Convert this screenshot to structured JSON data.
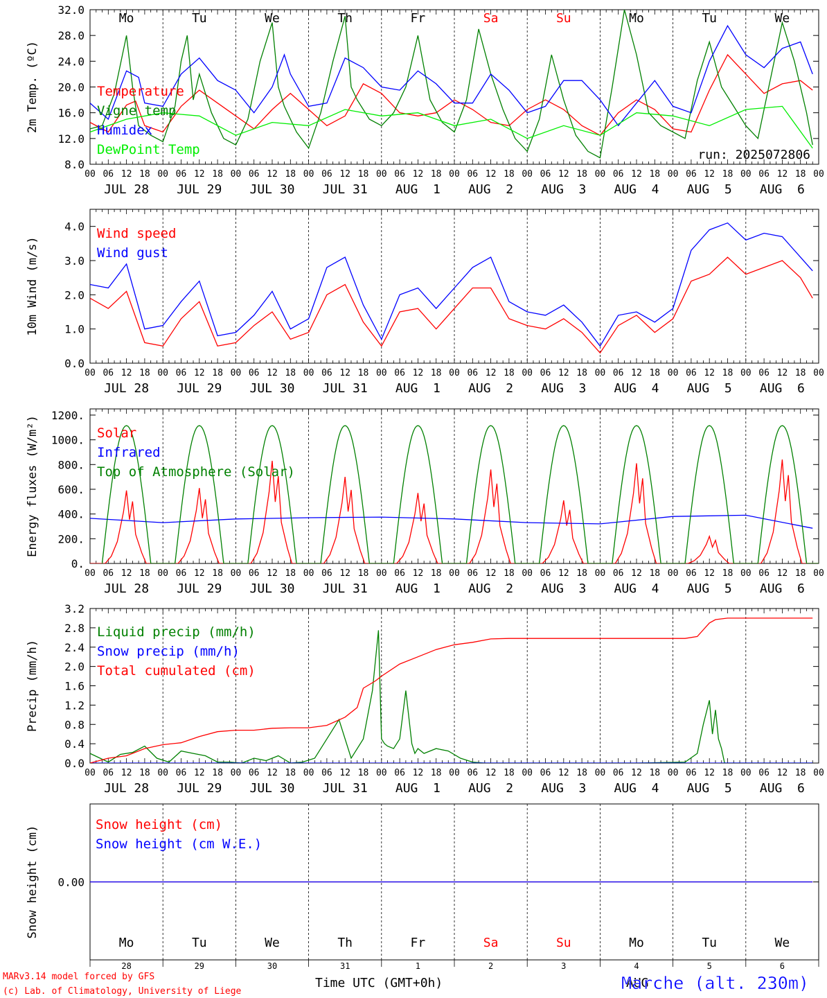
{
  "days": [
    "Mo",
    "Tu",
    "We",
    "Th",
    "Fr",
    "Sa",
    "Su",
    "Mo",
    "Tu",
    "We"
  ],
  "day_colors": [
    "#000000",
    "#000000",
    "#000000",
    "#000000",
    "#000000",
    "#ff0000",
    "#ff0000",
    "#000000",
    "#000000",
    "#000000"
  ],
  "dates": [
    "JUL 28",
    "JUL 29",
    "JUL 30",
    "JUL 31",
    "AUG  1",
    "AUG  2",
    "AUG  3",
    "AUG  4",
    "AUG  5",
    "AUG  6"
  ],
  "hour_labels": [
    "00",
    "06",
    "12",
    "18"
  ],
  "bottom_days": [
    "28",
    "29",
    "30",
    "31",
    "1",
    "2",
    "3",
    "4",
    "5",
    "6"
  ],
  "footer": {
    "model": "MARv3.14 model forced by GFS",
    "copyright": "(c) Lab. of Climatology, University of Liege",
    "axis_title": "Time UTC (GMT+0h)",
    "station": "Marche (alt. 230m)",
    "overlap_text": "AUG"
  },
  "chart_data": [
    {
      "type": "line",
      "ylabel": "2m Temp. (ºC)",
      "ylim": [
        8,
        32
      ],
      "yticks": [
        "8.0",
        "12.0",
        "16.0",
        "20.0",
        "24.0",
        "28.0",
        "32.0"
      ],
      "run": "run: 2025072806",
      "x_unit": "hours since JUL 28 00 UTC",
      "series": [
        {
          "name": "Temperature",
          "color": "#ff0000",
          "x": [
            0,
            6,
            12,
            15,
            18,
            24,
            30,
            36,
            42,
            48,
            54,
            60,
            66,
            72,
            78,
            84,
            90,
            96,
            102,
            108,
            114,
            120,
            126,
            132,
            138,
            144,
            150,
            156,
            162,
            168,
            174,
            180,
            186,
            192,
            198,
            204,
            210,
            216,
            222,
            228,
            234,
            238
          ],
          "values": [
            14.5,
            13,
            17.2,
            17.8,
            14,
            13,
            17,
            19.5,
            17.5,
            15.5,
            13.5,
            16.5,
            19,
            16.5,
            14,
            15.5,
            20.5,
            19,
            16,
            15.5,
            16,
            18,
            16.5,
            14.5,
            14,
            16.5,
            18,
            16.5,
            14,
            12.5,
            16,
            18,
            16.5,
            13.5,
            13,
            19.5,
            25,
            22,
            19,
            20.5,
            21,
            19.5
          ]
        },
        {
          "name": "Vigne temp",
          "color": "#008000",
          "x": [
            0,
            4,
            8,
            12,
            14,
            16,
            20,
            24,
            28,
            30,
            32,
            34,
            36,
            40,
            44,
            48,
            52,
            56,
            60,
            62,
            64,
            68,
            72,
            76,
            80,
            84,
            86,
            88,
            92,
            96,
            100,
            104,
            108,
            112,
            116,
            120,
            124,
            128,
            132,
            136,
            140,
            144,
            148,
            152,
            156,
            160,
            164,
            168,
            172,
            176,
            180,
            184,
            188,
            192,
            196,
            200,
            204,
            208,
            212,
            216,
            220,
            224,
            228,
            232,
            236,
            238
          ],
          "values": [
            13.5,
            14,
            19,
            28,
            20,
            14,
            12.5,
            11.5,
            17,
            24,
            28,
            18,
            22,
            16,
            12,
            11,
            15,
            24,
            30,
            20,
            17,
            13,
            10.5,
            16,
            24,
            31,
            20,
            18,
            15,
            14,
            16,
            20,
            28,
            18,
            14.5,
            13,
            18,
            29,
            22,
            16.5,
            12,
            10,
            15,
            25,
            18,
            12.5,
            10,
            9,
            20,
            32,
            25,
            16,
            14,
            13,
            12,
            21,
            27,
            20,
            17,
            14,
            12,
            21,
            30,
            24,
            16,
            11
          ]
        },
        {
          "name": "Humidex",
          "color": "#0000ff",
          "x": [
            0,
            6,
            12,
            16,
            18,
            24,
            30,
            36,
            42,
            48,
            54,
            60,
            64,
            66,
            72,
            78,
            84,
            90,
            96,
            102,
            108,
            114,
            120,
            126,
            132,
            138,
            144,
            150,
            156,
            162,
            168,
            174,
            180,
            186,
            192,
            198,
            204,
            210,
            216,
            222,
            228,
            234,
            238
          ],
          "values": [
            17.5,
            15,
            22.5,
            21.5,
            17.5,
            17,
            22,
            24.5,
            21,
            19.5,
            16,
            20,
            25,
            22,
            17,
            17.5,
            24.5,
            23,
            20,
            19.5,
            22.5,
            20.5,
            17.5,
            17.5,
            22,
            19.5,
            16,
            17,
            21,
            21,
            18,
            14,
            17.5,
            21,
            17,
            16,
            24,
            29.5,
            25,
            23,
            26,
            27,
            22
          ]
        },
        {
          "name": "DewPoint Temp",
          "color": "#00ee00",
          "x": [
            0,
            12,
            24,
            36,
            48,
            60,
            72,
            84,
            96,
            108,
            120,
            132,
            144,
            156,
            168,
            180,
            192,
            204,
            216,
            228,
            238
          ],
          "values": [
            13,
            15,
            16,
            15.5,
            12.5,
            14.5,
            14,
            16.5,
            15.5,
            16,
            14,
            15,
            12,
            14,
            12.5,
            16,
            15.5,
            14,
            16.5,
            17,
            10.5
          ]
        }
      ]
    },
    {
      "type": "line",
      "ylabel": "10m Wind (m/s)",
      "ylim": [
        0,
        4.5
      ],
      "yticks": [
        "0.0",
        "1.0",
        "2.0",
        "3.0",
        "4.0"
      ],
      "x_unit": "hours since JUL 28 00 UTC",
      "series": [
        {
          "name": "Wind speed",
          "color": "#ff0000",
          "x": [
            0,
            6,
            12,
            18,
            24,
            30,
            36,
            42,
            48,
            54,
            60,
            66,
            72,
            78,
            84,
            90,
            96,
            102,
            108,
            114,
            120,
            126,
            132,
            138,
            144,
            150,
            156,
            162,
            168,
            174,
            180,
            186,
            192,
            198,
            204,
            210,
            216,
            222,
            228,
            234,
            238
          ],
          "values": [
            1.9,
            1.6,
            2.1,
            0.6,
            0.5,
            1.3,
            1.8,
            0.5,
            0.6,
            1.1,
            1.5,
            0.7,
            0.9,
            2.0,
            2.3,
            1.2,
            0.5,
            1.5,
            1.6,
            1.0,
            1.6,
            2.2,
            2.2,
            1.3,
            1.1,
            1.0,
            1.3,
            0.9,
            0.3,
            1.1,
            1.4,
            0.9,
            1.3,
            2.4,
            2.6,
            3.1,
            2.6,
            2.8,
            3.0,
            2.5,
            1.9
          ]
        },
        {
          "name": "Wind gust",
          "color": "#0000ff",
          "x": [
            0,
            6,
            12,
            18,
            24,
            30,
            36,
            42,
            48,
            54,
            60,
            66,
            72,
            78,
            84,
            90,
            96,
            102,
            108,
            114,
            120,
            126,
            132,
            138,
            144,
            150,
            156,
            162,
            168,
            174,
            180,
            186,
            192,
            198,
            204,
            210,
            216,
            222,
            228,
            234,
            238
          ],
          "values": [
            2.3,
            2.2,
            2.9,
            1.0,
            1.1,
            1.8,
            2.4,
            0.8,
            0.9,
            1.4,
            2.1,
            1.0,
            1.3,
            2.8,
            3.1,
            1.7,
            0.7,
            2.0,
            2.2,
            1.6,
            2.2,
            2.8,
            3.1,
            1.8,
            1.5,
            1.4,
            1.7,
            1.2,
            0.5,
            1.4,
            1.5,
            1.2,
            1.6,
            3.3,
            3.9,
            4.1,
            3.6,
            3.8,
            3.7,
            3.1,
            2.7
          ]
        }
      ]
    },
    {
      "type": "line",
      "ylabel": "Energy fluxes (W/m²)",
      "ylim": [
        0,
        1250
      ],
      "yticks": [
        "0.",
        "200.",
        "400.",
        "600.",
        "800.",
        "1000.",
        "1200."
      ],
      "x_unit": "hours since JUL 28 00 UTC",
      "series": [
        {
          "name": "Solar",
          "color": "#ff0000",
          "peaks": [
            590,
            610,
            830,
            700,
            570,
            760,
            510,
            810,
            220,
            840
          ]
        },
        {
          "name": "Infrared",
          "color": "#0000ff",
          "x": [
            0,
            24,
            48,
            72,
            96,
            120,
            144,
            168,
            192,
            216,
            238
          ],
          "values": [
            365,
            330,
            360,
            370,
            375,
            360,
            330,
            320,
            380,
            390,
            285
          ]
        },
        {
          "name": "Top of Atmosphere (Solar)",
          "color": "#008000",
          "peak": 1115,
          "sunrise_h": 4,
          "sunset_h": 20
        }
      ]
    },
    {
      "type": "line",
      "ylabel": "Precip (mm/h)",
      "ylim": [
        0,
        3.2
      ],
      "yticks": [
        "0.0",
        "0.4",
        "0.8",
        "1.2",
        "1.6",
        "2.0",
        "2.4",
        "2.8",
        "3.2"
      ],
      "x_unit": "hours since JUL 28 00 UTC",
      "series": [
        {
          "name": "Liquid precip (mm/h)",
          "color": "#008000",
          "x": [
            0,
            6,
            10,
            14,
            18,
            22,
            26,
            30,
            34,
            38,
            42,
            46,
            50,
            54,
            58,
            62,
            66,
            70,
            74,
            78,
            82,
            86,
            90,
            93,
            95,
            96,
            97,
            98,
            100,
            102,
            104,
            106,
            107,
            108,
            110,
            114,
            118,
            122,
            126,
            130,
            134,
            138,
            142,
            146,
            150,
            160,
            170,
            180,
            196,
            200,
            202,
            204,
            205,
            206,
            207,
            208,
            209,
            210,
            214,
            218,
            222,
            230,
            238
          ],
          "values": [
            0.2,
            0.02,
            0.18,
            0.22,
            0.35,
            0.1,
            0.02,
            0.25,
            0.2,
            0.15,
            0.02,
            0.02,
            0.0,
            0.1,
            0.05,
            0.15,
            0.0,
            0.02,
            0.1,
            0.5,
            0.9,
            0.1,
            0.5,
            1.5,
            2.75,
            0.5,
            0.4,
            0.35,
            0.3,
            0.5,
            1.5,
            0.4,
            0.2,
            0.3,
            0.2,
            0.3,
            0.25,
            0.1,
            0.02,
            0.0,
            0.0,
            0.0,
            0.0,
            0.0,
            0.0,
            0.0,
            0.0,
            0.0,
            0.02,
            0.2,
            0.8,
            1.3,
            0.6,
            1.1,
            0.5,
            0.3,
            0.0,
            0.0,
            0.0,
            0.0,
            0.0,
            0.0,
            0.0
          ]
        },
        {
          "name": "Snow precip (mm/h)",
          "color": "#0000ff",
          "x": [
            0,
            238
          ],
          "values": [
            0,
            0
          ]
        },
        {
          "name": "Total cumulated (cm)",
          "color": "#ff0000",
          "x": [
            0,
            6,
            12,
            18,
            24,
            30,
            36,
            42,
            48,
            54,
            60,
            66,
            72,
            78,
            84,
            88,
            90,
            94,
            96,
            102,
            108,
            114,
            120,
            126,
            132,
            138,
            144,
            150,
            156,
            162,
            168,
            174,
            180,
            186,
            196,
            200,
            204,
            206,
            210,
            216,
            238
          ],
          "values": [
            0.0,
            0.1,
            0.15,
            0.3,
            0.38,
            0.42,
            0.55,
            0.65,
            0.68,
            0.68,
            0.72,
            0.73,
            0.73,
            0.78,
            0.95,
            1.15,
            1.55,
            1.7,
            1.8,
            2.05,
            2.2,
            2.35,
            2.45,
            2.5,
            2.57,
            2.58,
            2.58,
            2.58,
            2.58,
            2.58,
            2.58,
            2.58,
            2.58,
            2.58,
            2.58,
            2.62,
            2.9,
            2.97,
            3.0,
            3.0,
            3.0
          ]
        }
      ]
    },
    {
      "type": "line",
      "ylabel": "Snow height (cm)",
      "yticks": [
        "0.00"
      ],
      "x_unit": "hours since JUL 28 00 UTC",
      "series": [
        {
          "name": "Snow height (cm)",
          "color": "#ff0000",
          "x": [
            0,
            238
          ],
          "values": [
            0,
            0
          ]
        },
        {
          "name": "Snow height (cm W.E.)",
          "color": "#0000ff",
          "x": [
            0,
            238
          ],
          "values": [
            0,
            0
          ]
        }
      ]
    }
  ]
}
